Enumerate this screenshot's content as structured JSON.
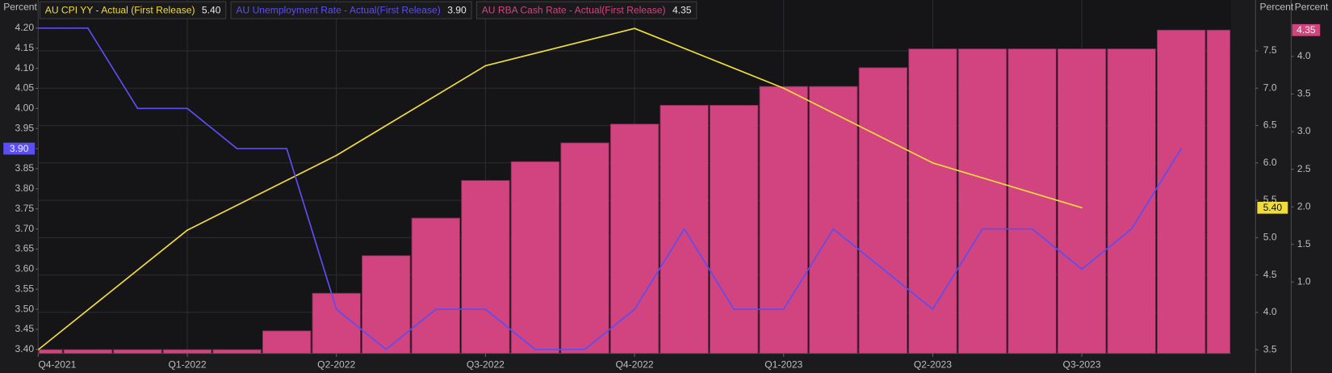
{
  "chart_data": {
    "type": "combo",
    "y_label": "Percent",
    "y2_label": "Percent",
    "y3_label": "Percent",
    "categories": [
      "Q4-2021",
      null,
      null,
      "Q1-2022",
      null,
      null,
      "Q2-2022",
      null,
      null,
      "Q3-2022",
      null,
      null,
      "Q4-2022",
      null,
      null,
      "Q1-2023",
      null,
      null,
      "Q2-2023",
      null,
      null,
      "Q3-2023",
      null,
      null,
      null
    ],
    "ylim": [
      3.39,
      4.27
    ],
    "yticks": [
      {
        "value": 4.2,
        "label": "4.20"
      },
      4.15,
      {
        "value": 4.1,
        "label": "4.10"
      },
      4.05,
      {
        "value": 4,
        "label": "4.00"
      },
      3.95,
      {
        "value": 3.9,
        "label": "3.90"
      },
      3.85,
      {
        "value": 3.8,
        "label": "3.80"
      },
      3.75,
      {
        "value": 3.7,
        "label": "3.70"
      },
      3.65,
      {
        "value": 3.6,
        "label": "3.60"
      },
      3.55,
      {
        "value": 3.5,
        "label": "3.50"
      },
      3.45,
      {
        "value": 3.4,
        "label": "3.40"
      }
    ],
    "y2lim": [
      3.45,
      8.18
    ],
    "y2ticks": [
      {
        "value": 7.5,
        "label": "7.5"
      },
      {
        "value": 7,
        "label": "7.0"
      },
      6.5,
      {
        "value": 6,
        "label": "6.0"
      },
      5.5,
      {
        "value": 5,
        "label": "5.0"
      },
      4.5,
      {
        "value": 4,
        "label": "4.0"
      },
      3.5
    ],
    "y3lim": [
      0.05,
      4.75
    ],
    "y3ticks": [
      {
        "value": 4,
        "label": "4.0"
      },
      3.5,
      {
        "value": 3,
        "label": "3.0"
      },
      2.5,
      {
        "value": 2,
        "label": "2.0"
      },
      1.5,
      {
        "value": 1,
        "label": "1.0"
      }
    ],
    "grid": true,
    "series": [
      {
        "name": "AU CPI YY - Actual (First Release)",
        "type": "line",
        "axis": "y2",
        "color": "#f0dc3c",
        "values": [
          3.5,
          null,
          null,
          5.1,
          null,
          null,
          6.1,
          null,
          null,
          7.3,
          null,
          null,
          7.8,
          null,
          null,
          7.0,
          null,
          null,
          6.0,
          null,
          null,
          5.4,
          null,
          null,
          null
        ],
        "value_labels": [
          null,
          null,
          null,
          null,
          null,
          null,
          null,
          null,
          null,
          null,
          null,
          null,
          null,
          null,
          null,
          null,
          null,
          null,
          null,
          null,
          null,
          "5.40",
          null,
          null,
          null
        ]
      },
      {
        "name": "AU Unemployment Rate - Actual(First Release)",
        "type": "line",
        "axis": "y",
        "color": "#5b4ef2",
        "values": [
          4.2,
          4.2,
          4.0,
          4.0,
          3.9,
          3.9,
          3.5,
          3.4,
          3.5,
          3.5,
          3.4,
          3.4,
          3.5,
          3.7,
          3.5,
          3.5,
          3.7,
          3.6,
          3.5,
          3.7,
          3.7,
          3.6,
          3.7,
          3.9,
          null
        ],
        "value_labels": [
          null,
          null,
          null,
          null,
          null,
          null,
          null,
          null,
          null,
          null,
          null,
          null,
          null,
          null,
          null,
          null,
          null,
          null,
          null,
          null,
          null,
          null,
          null,
          "3.90",
          null
        ]
      },
      {
        "name": "AU RBA Cash Rate - Actual(First Release)",
        "type": "bar",
        "axis": "y3",
        "color": "#d2447f",
        "values": [
          0.1,
          0.1,
          0.1,
          0.1,
          0.1,
          0.35,
          0.85,
          1.35,
          1.85,
          2.35,
          2.6,
          2.85,
          3.1,
          3.35,
          3.35,
          3.6,
          3.6,
          3.85,
          4.1,
          4.1,
          4.1,
          4.1,
          4.1,
          4.35,
          4.35
        ],
        "value_labels": [
          null,
          null,
          null,
          null,
          null,
          null,
          null,
          null,
          null,
          null,
          null,
          null,
          null,
          null,
          null,
          null,
          null,
          null,
          null,
          null,
          null,
          null,
          null,
          null,
          "4.35"
        ]
      }
    ]
  }
}
